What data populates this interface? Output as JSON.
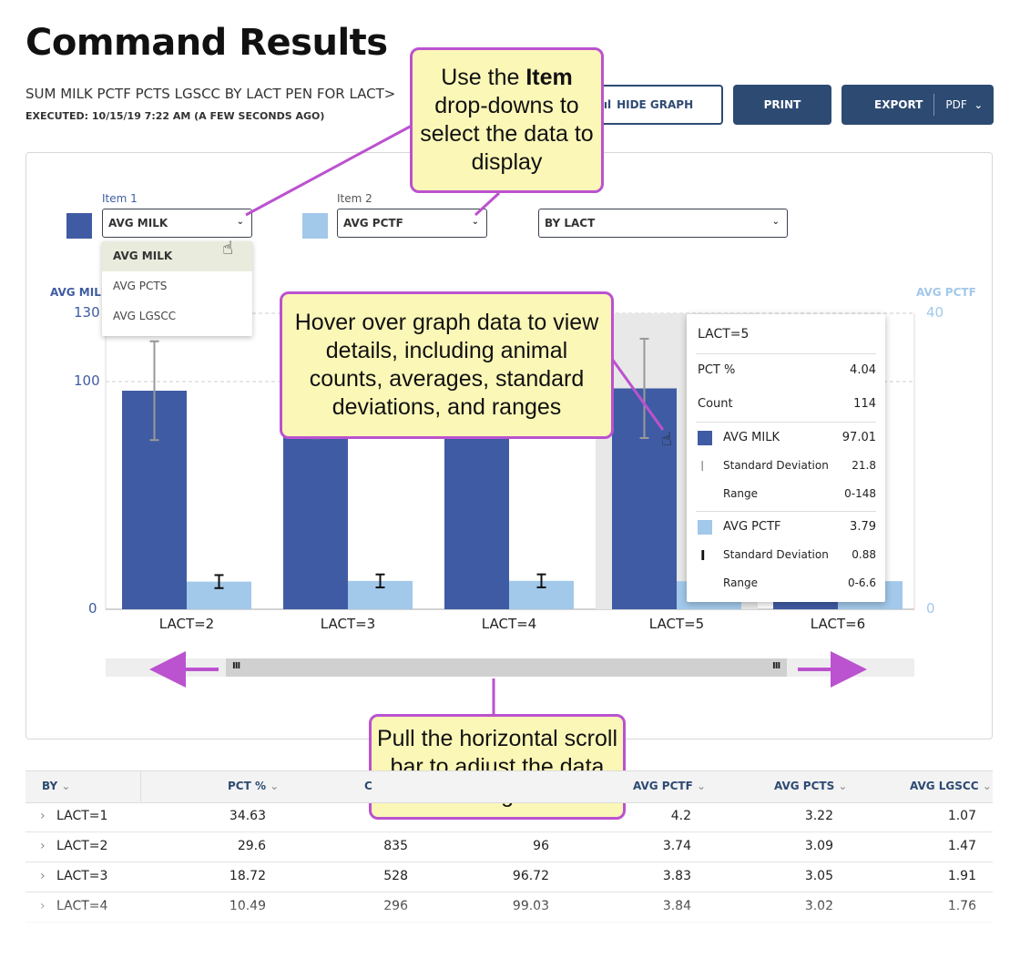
{
  "page": {
    "title": "Command Results",
    "subtitle": "SUM MILK PCTF PCTS LGSCC BY LACT PEN FOR LACT>",
    "executed": "EXECUTED: 10/15/19 7:22 AM (A FEW SECONDS AGO)"
  },
  "toolbar": {
    "hide_graph": "HIDE GRAPH",
    "print": "PRINT",
    "export": "EXPORT",
    "export_format": "PDF"
  },
  "selectors": {
    "item1": {
      "label": "Item 1",
      "value": "AVG MILK",
      "color": "#3f5ba3"
    },
    "item2": {
      "label": "Item 2",
      "value": "AVG PCTF",
      "color": "#a2c8ea"
    },
    "by": {
      "value": "BY LACT"
    },
    "item1_options": [
      "AVG MILK",
      "AVG PCTS",
      "AVG LGSCC"
    ]
  },
  "colors": {
    "primary": "#3f5ba3",
    "secondary": "#a2c8ea",
    "accent": "#2d4a72",
    "callout_border": "#bb52cf",
    "callout_fill": "#fbf7b7"
  },
  "chart_data": {
    "type": "bar",
    "categories": [
      "LACT=2",
      "LACT=3",
      "LACT=4",
      "LACT=5",
      "LACT=6"
    ],
    "y_left": {
      "title": "AVG MILK",
      "ticks": [
        "130",
        "100",
        "0"
      ],
      "range": [
        0,
        130
      ]
    },
    "y_right": {
      "title": "AVG PCTF",
      "ticks": [
        "40",
        "0"
      ],
      "range": [
        0,
        40
      ]
    },
    "series": [
      {
        "name": "AVG MILK",
        "axis": "left",
        "values": [
          96,
          96.72,
          99.03,
          97.01,
          96
        ],
        "sd": [
          21.7,
          21.6,
          21.7,
          21.8,
          null
        ]
      },
      {
        "name": "AVG PCTF",
        "axis": "right",
        "values": [
          3.74,
          3.83,
          3.84,
          3.79,
          3.8
        ],
        "sd": [
          0.88,
          0.88,
          0.88,
          0.88,
          null
        ]
      }
    ],
    "grid": true,
    "highlighted": "LACT=5"
  },
  "tooltip": {
    "title": "LACT=5",
    "pct_label": "PCT %",
    "pct_value": "4.04",
    "count_label": "Count",
    "count_value": "114",
    "milk_label": "AVG MILK",
    "milk_value": "97.01",
    "milk_sd_label": "Standard Deviation",
    "milk_sd_value": "21.8",
    "milk_range_label": "Range",
    "milk_range_value": "0-148",
    "pctf_label": "AVG PCTF",
    "pctf_value": "3.79",
    "pctf_sd_label": "Standard Deviation",
    "pctf_sd_value": "0.88",
    "pctf_range_label": "Range",
    "pctf_range_value": "0-6.6"
  },
  "callouts": {
    "item_prefix": "Use the ",
    "item_bold": "Item",
    "item_rest": "drop-downs to select the data to display",
    "hover": "Hover over graph data to view details, including animal counts, averages, standard deviations, and ranges",
    "scroll": "Pull the horizontal scroll bar to adjust the data range"
  },
  "table": {
    "headers": [
      "BY",
      "PCT %",
      "C",
      "AVG PCTF",
      "AVG PCTS",
      "AVG LGSCC"
    ],
    "rows": [
      {
        "by": "LACT=1",
        "pct": "34.63",
        "count": "",
        "milk": "",
        "pctf": "4.2",
        "pcts": "3.22",
        "lgscc": "1.07"
      },
      {
        "by": "LACT=2",
        "pct": "29.6",
        "count": "835",
        "milk": "96",
        "pctf": "3.74",
        "pcts": "3.09",
        "lgscc": "1.47"
      },
      {
        "by": "LACT=3",
        "pct": "18.72",
        "count": "528",
        "milk": "96.72",
        "pctf": "3.83",
        "pcts": "3.05",
        "lgscc": "1.91"
      },
      {
        "by": "LACT=4",
        "pct": "10.49",
        "count": "296",
        "milk": "99.03",
        "pctf": "3.84",
        "pcts": "3.02",
        "lgscc": "1.76"
      }
    ]
  }
}
